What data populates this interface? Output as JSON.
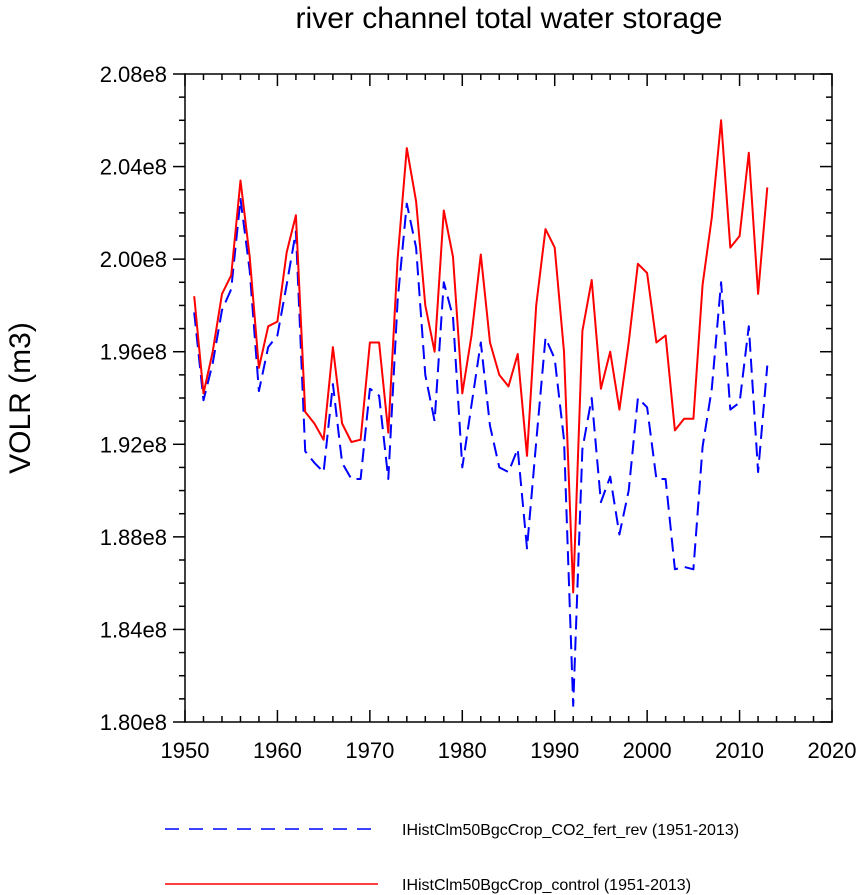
{
  "chart_data": {
    "type": "line",
    "title": "river channel total water storage",
    "xlabel": "",
    "ylabel": "VOLR  (m3)",
    "xlim": [
      1950,
      2020
    ],
    "ylim": [
      180000000.0,
      208000000.0
    ],
    "x_ticks": [
      1950,
      1960,
      1970,
      1980,
      1990,
      2000,
      2010,
      2020
    ],
    "x_tick_labels": [
      "1950",
      "1960",
      "1970",
      "1980",
      "1990",
      "2000",
      "2010",
      "2020"
    ],
    "y_ticks": [
      180000000.0,
      184000000.0,
      188000000.0,
      192000000.0,
      196000000.0,
      200000000.0,
      204000000.0,
      208000000.0
    ],
    "y_tick_labels": [
      "1.80e8",
      "1.84e8",
      "1.88e8",
      "1.92e8",
      "1.96e8",
      "2.00e8",
      "2.04e8",
      "2.08e8"
    ],
    "grid": false,
    "legend_position": "bottom",
    "x": [
      1951,
      1952,
      1953,
      1954,
      1955,
      1956,
      1957,
      1958,
      1959,
      1960,
      1961,
      1962,
      1963,
      1964,
      1965,
      1966,
      1967,
      1968,
      1969,
      1970,
      1971,
      1972,
      1973,
      1974,
      1975,
      1976,
      1977,
      1978,
      1979,
      1980,
      1981,
      1982,
      1983,
      1984,
      1985,
      1986,
      1987,
      1988,
      1989,
      1990,
      1991,
      1992,
      1993,
      1994,
      1995,
      1996,
      1997,
      1998,
      1999,
      2000,
      2001,
      2002,
      2003,
      2004,
      2005,
      2006,
      2007,
      2008,
      2009,
      2010,
      2011,
      2012,
      2013
    ],
    "series": [
      {
        "name": "IHistClm50BgcCrop_CO2_fert_rev (1951-2013)",
        "color": "#0000ff",
        "dash": "dashed",
        "values": [
          1.977,
          1.939,
          1.955,
          1.978,
          1.987,
          2.026,
          1.995,
          1.943,
          1.962,
          1.967,
          1.989,
          2.012,
          1.917,
          1.912,
          1.908,
          1.946,
          1.912,
          1.905,
          1.905,
          1.944,
          1.941,
          1.905,
          1.982,
          2.024,
          2.005,
          1.95,
          1.93,
          1.99,
          1.975,
          1.91,
          1.937,
          1.964,
          1.928,
          1.91,
          1.908,
          1.918,
          1.875,
          1.921,
          1.966,
          1.957,
          1.922,
          1.807,
          1.918,
          1.94,
          1.895,
          1.906,
          1.881,
          1.9,
          1.94,
          1.936,
          1.905,
          1.905,
          1.866,
          1.867,
          1.866,
          1.919,
          1.944,
          1.99,
          1.935,
          1.938,
          1.971,
          1.908,
          1.954
        ]
      },
      {
        "name": "IHistClm50BgcCrop_control (1951-2013)",
        "color": "#ff0000",
        "dash": "solid",
        "values": [
          1.984,
          1.942,
          1.96,
          1.985,
          1.993,
          2.034,
          2.001,
          1.953,
          1.971,
          1.973,
          2.003,
          2.019,
          1.934,
          1.929,
          1.922,
          1.962,
          1.929,
          1.921,
          1.922,
          1.964,
          1.964,
          1.925,
          2.0,
          2.048,
          2.025,
          1.98,
          1.96,
          2.021,
          2.001,
          1.942,
          1.967,
          2.002,
          1.964,
          1.95,
          1.945,
          1.959,
          1.915,
          1.98,
          2.013,
          2.005,
          1.96,
          1.856,
          1.969,
          1.991,
          1.944,
          1.96,
          1.935,
          1.964,
          1.998,
          1.994,
          1.964,
          1.967,
          1.926,
          1.931,
          1.931,
          1.989,
          2.018,
          2.06,
          2.005,
          2.01,
          2.046,
          1.985,
          2.031
        ]
      }
    ]
  }
}
